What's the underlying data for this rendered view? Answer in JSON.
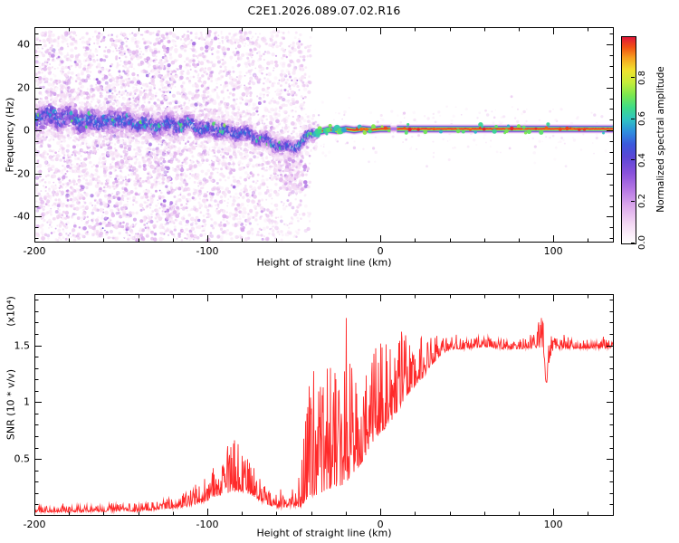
{
  "title": "C2E1.2026.089.07.02.R16",
  "colorbar": {
    "label": "Normalized spectral amplitude",
    "tick_labels": [
      "0.0",
      "0.2",
      "0.4",
      "0.6",
      "0.8"
    ],
    "tick_values": [
      0,
      0.2,
      0.4,
      0.6,
      0.8
    ],
    "range": [
      0,
      1
    ]
  },
  "colormap_stops": [
    [
      0,
      "#ffffff"
    ],
    [
      0.04,
      "#fcf0fb"
    ],
    [
      0.1,
      "#f2d5f3"
    ],
    [
      0.18,
      "#dca9ec"
    ],
    [
      0.26,
      "#b678e4"
    ],
    [
      0.34,
      "#8a52db"
    ],
    [
      0.42,
      "#5a46d6"
    ],
    [
      0.48,
      "#3b58dc"
    ],
    [
      0.54,
      "#2e8ddf"
    ],
    [
      0.6,
      "#2fc3c3"
    ],
    [
      0.66,
      "#3fdc86"
    ],
    [
      0.72,
      "#7ce84e"
    ],
    [
      0.78,
      "#c5ed39"
    ],
    [
      0.84,
      "#f1e12d"
    ],
    [
      0.9,
      "#f69f1e"
    ],
    [
      0.95,
      "#f15213"
    ],
    [
      1,
      "#e01738"
    ]
  ],
  "chart_data": [
    {
      "type": "heatmap",
      "name": "spectrogram",
      "xlabel": "Height of straight line (km)",
      "ylabel": "Frequency (Hz)",
      "xlim": [
        -200,
        135
      ],
      "ylim": [
        -52,
        48
      ],
      "xticks": [
        -200,
        -100,
        0,
        100
      ],
      "x_minor_step": 20,
      "yticks": [
        -40,
        -20,
        0,
        20,
        40
      ],
      "y_minor_step": 5,
      "ridge": {
        "x": [
          -200,
          -193,
          -186,
          -179,
          -172,
          -165,
          -158,
          -151,
          -144,
          -137,
          -130,
          -123,
          -116,
          -109,
          -102,
          -95,
          -88,
          -81,
          -74,
          -67,
          -60,
          -54,
          -48,
          -44,
          -41,
          -38,
          -35,
          -30,
          -25,
          -20,
          -15,
          -10,
          -5,
          0,
          10,
          20,
          40,
          60,
          80,
          100,
          120,
          135
        ],
        "freq": [
          5.5,
          6.5,
          5,
          6,
          4.5,
          5.5,
          3.5,
          4.5,
          3,
          4,
          2,
          3,
          1.5,
          2.5,
          0.5,
          1.5,
          -0.5,
          -1.5,
          -3,
          -4.5,
          -6,
          -7.5,
          -7,
          -5,
          -3,
          -1.5,
          -0.5,
          0.5,
          0,
          0.8,
          0.2,
          0.8,
          0.4,
          0.8,
          0.8,
          0.8,
          0.8,
          0.8,
          0.8,
          0.8,
          0.8,
          0.8
        ],
        "halfwidth": [
          6.5,
          6.5,
          6.5,
          6.3,
          6.2,
          6,
          6,
          5.8,
          5.6,
          5.5,
          5.3,
          5.2,
          5,
          5,
          4.8,
          4.7,
          4.5,
          4.4,
          4.2,
          4,
          3.8,
          3.6,
          3.4,
          3.1,
          2.9,
          2.7,
          2.5,
          2.3,
          2.2,
          2.2,
          2.2,
          2.2,
          2.2,
          2.2,
          2.2,
          2.2,
          2.2,
          2.2,
          2.2,
          2.2,
          2.2,
          2.2
        ],
        "amp": [
          0.62,
          0.62,
          0.62,
          0.62,
          0.62,
          0.62,
          0.62,
          0.62,
          0.62,
          0.62,
          0.62,
          0.62,
          0.62,
          0.62,
          0.62,
          0.62,
          0.6,
          0.6,
          0.58,
          0.58,
          0.58,
          0.6,
          0.65,
          0.72,
          0.78,
          0.85,
          0.9,
          0.97,
          0.97,
          0.97,
          0.97,
          0.97,
          0.97,
          0.97,
          0.97,
          0.97,
          0.97,
          0.97,
          0.97,
          0.97,
          0.97,
          0.97
        ]
      },
      "band_gap_x": [
        6,
        9.5
      ],
      "noise_streaks": {
        "x": [
          -196,
          -190,
          -185,
          -180,
          -175,
          -169,
          -163,
          -158,
          -152,
          -147,
          -141,
          -135,
          -129,
          -124,
          -118,
          -112,
          -106,
          -100,
          -94,
          -88,
          -82,
          -76,
          -70,
          -64,
          -58,
          -52,
          -46
        ],
        "strength": [
          0.4,
          0.55,
          0.35,
          0.6,
          0.45,
          0.5,
          0.4,
          0.7,
          0.5,
          0.75,
          0.55,
          0.6,
          0.5,
          0.8,
          0.45,
          0.5,
          0.4,
          0.45,
          0.35,
          0.4,
          0.35,
          0.45,
          0.3,
          0.35,
          0.3,
          0.3,
          0.25
        ]
      },
      "noise_blob": {
        "x": -52,
        "freq": -19,
        "sx": 5,
        "sy": 6
      }
    },
    {
      "type": "line",
      "name": "snr",
      "xlabel": "Height of straight line (km)",
      "ylabel": "SNR (10 * v/v)",
      "scale_label": "(x10⁴)",
      "line_color": "#ff2a2a",
      "xlim": [
        -200,
        135
      ],
      "ylim": [
        0,
        1.95
      ],
      "xticks": [
        -200,
        -100,
        0,
        100
      ],
      "x_minor_step": 20,
      "yticks": [
        0.5,
        1,
        1.5
      ],
      "ytick_labels": [
        "0.5",
        "1",
        "1.5"
      ],
      "y_minor_step": 0.1,
      "envelope": {
        "x": [
          -200,
          -180,
          -160,
          -150,
          -140,
          -130,
          -120,
          -110,
          -105,
          -100,
          -95,
          -90,
          -85,
          -80,
          -75,
          -70,
          -65,
          -60,
          -55,
          -50,
          -46,
          -43,
          -40,
          -35,
          -30,
          -25,
          -20,
          -15,
          -10,
          -5,
          0,
          5,
          10,
          15,
          20,
          25,
          30,
          35,
          40,
          50,
          60,
          70,
          80,
          90,
          93,
          96,
          98,
          100,
          110,
          120,
          135
        ],
        "base": [
          0.05,
          0.05,
          0.06,
          0.07,
          0.06,
          0.08,
          0.1,
          0.13,
          0.18,
          0.22,
          0.28,
          0.32,
          0.38,
          0.35,
          0.3,
          0.22,
          0.15,
          0.12,
          0.12,
          0.15,
          0.3,
          0.5,
          0.55,
          0.6,
          0.65,
          0.6,
          0.65,
          0.7,
          0.8,
          0.9,
          1.0,
          1.05,
          1.15,
          1.25,
          1.3,
          1.35,
          1.42,
          1.47,
          1.5,
          1.5,
          1.52,
          1.5,
          1.5,
          1.52,
          1.55,
          1.3,
          1.45,
          1.5,
          1.5,
          1.5,
          1.5
        ],
        "spread": [
          0.04,
          0.04,
          0.05,
          0.06,
          0.05,
          0.06,
          0.07,
          0.1,
          0.15,
          0.2,
          0.25,
          0.3,
          0.35,
          0.3,
          0.25,
          0.18,
          0.12,
          0.1,
          0.1,
          0.15,
          0.5,
          0.8,
          0.85,
          0.9,
          0.9,
          0.8,
          0.8,
          0.7,
          0.7,
          0.6,
          0.6,
          0.55,
          0.5,
          0.45,
          0.35,
          0.3,
          0.2,
          0.12,
          0.08,
          0.07,
          0.07,
          0.07,
          0.07,
          0.1,
          0.3,
          0.35,
          0.15,
          0.08,
          0.06,
          0.06,
          0.06
        ]
      }
    }
  ]
}
